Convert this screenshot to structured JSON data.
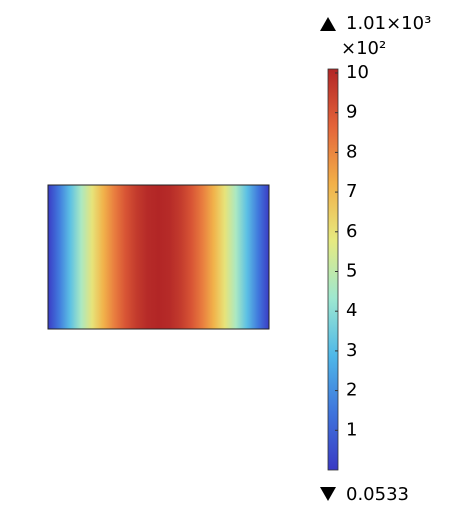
{
  "chart_data": {
    "type": "surface",
    "field": {
      "x": [
        0,
        0.05,
        0.1,
        0.15,
        0.2,
        0.25,
        0.3,
        0.35,
        0.4,
        0.45,
        0.5,
        0.55,
        0.6,
        0.65,
        0.7,
        0.75,
        0.8,
        0.85,
        0.9,
        0.95,
        1
      ],
      "values": [
        0.05,
        1.58,
        3.12,
        4.59,
        5.94,
        7.14,
        8.17,
        9.0,
        9.61,
        9.98,
        10.1,
        9.98,
        9.61,
        9.0,
        8.17,
        7.14,
        5.94,
        4.59,
        3.12,
        1.58,
        0.05
      ]
    },
    "colorbar_max": {
      "value": 10.1,
      "label": "1.01×10³"
    },
    "colorbar_min": {
      "value": 0.000533,
      "label": "0.0533"
    },
    "multiplier": "×10²",
    "colorbar_ticks": [
      1,
      2,
      3,
      4,
      5,
      6,
      7,
      8,
      9,
      10
    ],
    "colormap": [
      "#3a3ac4",
      "#3f74dc",
      "#4fb8e8",
      "#9ee8d0",
      "#e6ea80",
      "#f2b048",
      "#e4643a",
      "#b22626"
    ]
  }
}
